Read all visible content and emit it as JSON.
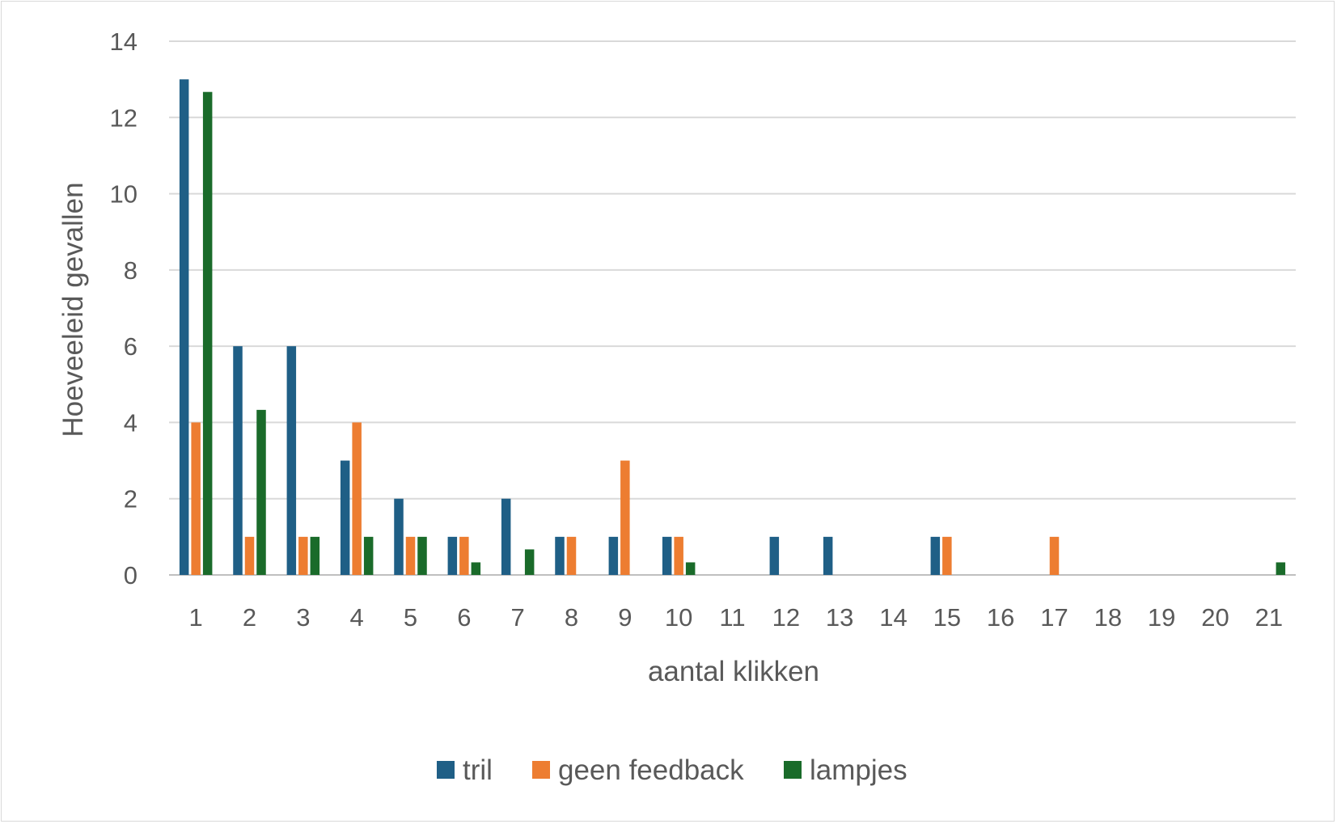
{
  "chart_data": {
    "type": "bar",
    "title": "",
    "xlabel": "aantal klikken",
    "ylabel": "Hoeveeleid gevallen",
    "ylim": [
      0,
      14
    ],
    "yticks": [
      0,
      2,
      4,
      6,
      8,
      10,
      12,
      14
    ],
    "grid": true,
    "legend_position": "bottom",
    "categories": [
      "1",
      "2",
      "3",
      "4",
      "5",
      "6",
      "7",
      "8",
      "9",
      "10",
      "11",
      "12",
      "13",
      "14",
      "15",
      "16",
      "17",
      "18",
      "19",
      "20",
      "21"
    ],
    "series": [
      {
        "name": "tril",
        "color": "#1f5f86",
        "values": [
          13,
          6,
          6,
          3,
          2,
          1,
          2,
          1,
          1,
          1,
          0,
          1,
          1,
          0,
          1,
          0,
          0,
          0,
          0,
          0,
          0
        ]
      },
      {
        "name": "geen feedback",
        "color": "#ed7d31",
        "values": [
          4,
          1,
          1,
          4,
          1,
          1,
          0,
          1,
          3,
          1,
          0,
          0,
          0,
          0,
          1,
          0,
          1,
          0,
          0,
          0,
          0
        ]
      },
      {
        "name": "lampjes",
        "color": "#1a6b2a",
        "values": [
          12.67,
          4.33,
          1,
          1,
          1,
          0.33,
          0.67,
          0,
          0,
          0.33,
          0,
          0,
          0,
          0,
          0,
          0,
          0,
          0,
          0,
          0,
          0.33
        ]
      }
    ]
  }
}
